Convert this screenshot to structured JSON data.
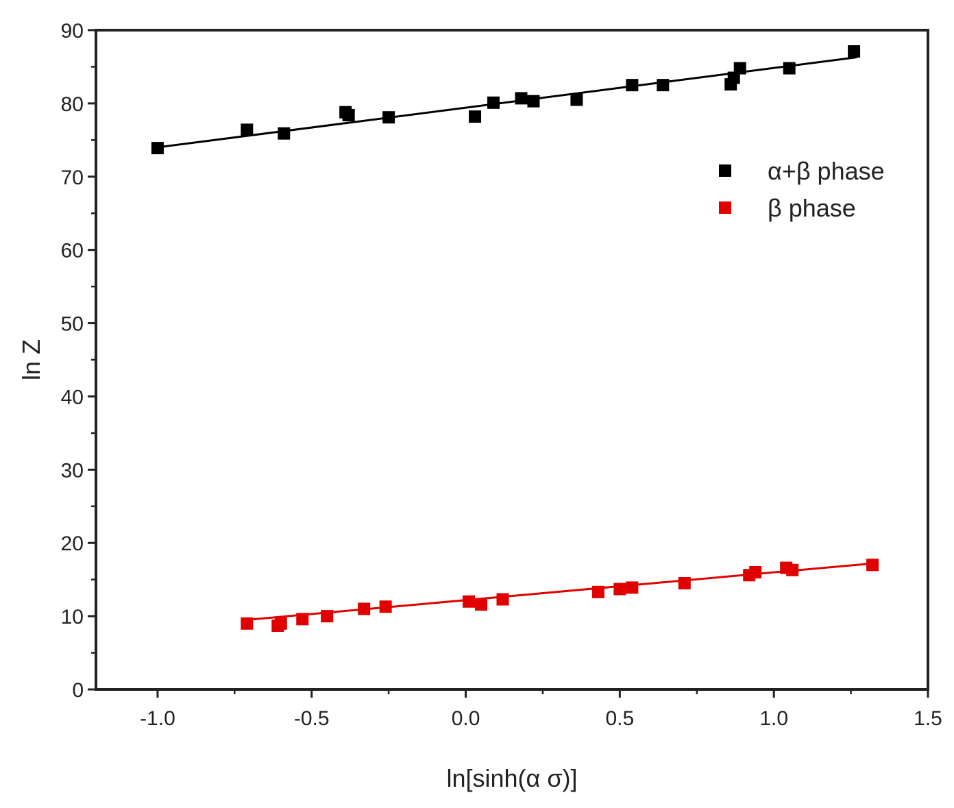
{
  "chart_data": {
    "type": "scatter",
    "title": "",
    "xlabel": "ln[sinh(α σ)]",
    "ylabel": "ln Z",
    "xlim": [
      -1.2,
      1.5
    ],
    "ylim": [
      0,
      90
    ],
    "xticks": [
      -1.0,
      -0.5,
      0.0,
      0.5,
      1.0,
      1.5
    ],
    "xtick_labels": [
      "-1.0",
      "-0.5",
      "0.0",
      "0.5",
      "1.0",
      "1.5"
    ],
    "yticks": [
      0,
      10,
      20,
      30,
      40,
      50,
      60,
      70,
      80,
      90
    ],
    "ytick_labels": [
      "0",
      "10",
      "20",
      "30",
      "40",
      "50",
      "60",
      "70",
      "80",
      "90"
    ],
    "grid": false,
    "legend_position": "upper-right",
    "series": [
      {
        "name": "α+β phase",
        "color": "#000000",
        "marker": "square",
        "points": [
          [
            -1.0,
            73.9
          ],
          [
            -0.71,
            76.4
          ],
          [
            -0.59,
            75.9
          ],
          [
            -0.38,
            78.4
          ],
          [
            -0.39,
            78.8
          ],
          [
            -0.25,
            78.1
          ],
          [
            0.03,
            78.2
          ],
          [
            0.09,
            80.1
          ],
          [
            0.18,
            80.7
          ],
          [
            0.22,
            80.3
          ],
          [
            0.36,
            80.5
          ],
          [
            0.54,
            82.5
          ],
          [
            0.64,
            82.5
          ],
          [
            0.86,
            82.6
          ],
          [
            0.87,
            83.5
          ],
          [
            0.89,
            84.8
          ],
          [
            1.05,
            84.8
          ],
          [
            1.26,
            87.1
          ]
        ],
        "fit": {
          "x": [
            -1.0,
            1.27
          ],
          "y": [
            74.0,
            86.3
          ]
        }
      },
      {
        "name": "β phase",
        "color": "#e00000",
        "marker": "square",
        "points": [
          [
            -0.71,
            9.0
          ],
          [
            -0.6,
            9.0
          ],
          [
            -0.61,
            8.7
          ],
          [
            -0.53,
            9.6
          ],
          [
            -0.45,
            10.0
          ],
          [
            -0.33,
            11.0
          ],
          [
            -0.26,
            11.3
          ],
          [
            0.01,
            12.0
          ],
          [
            0.05,
            11.6
          ],
          [
            0.12,
            12.3
          ],
          [
            0.43,
            13.3
          ],
          [
            0.5,
            13.7
          ],
          [
            0.54,
            13.9
          ],
          [
            0.71,
            14.5
          ],
          [
            0.92,
            15.6
          ],
          [
            0.94,
            16.0
          ],
          [
            1.04,
            16.6
          ],
          [
            1.06,
            16.3
          ],
          [
            1.32,
            17.0
          ]
        ],
        "fit": {
          "x": [
            -0.71,
            1.32
          ],
          "y": [
            9.5,
            17.2
          ]
        }
      }
    ]
  }
}
